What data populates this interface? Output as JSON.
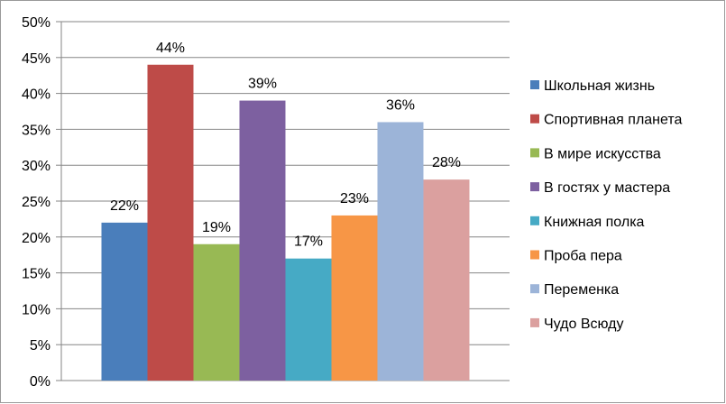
{
  "chart_data": {
    "type": "bar",
    "categories": [
      "Школьная жизнь",
      "Спортивная планета",
      "В мире искусства",
      "В гостях у мастера",
      "Книжная полка",
      "Проба пера",
      "Переменка",
      "Чудо Всюду"
    ],
    "values": [
      22,
      44,
      19,
      39,
      17,
      23,
      36,
      28
    ],
    "data_labels": [
      "22%",
      "44%",
      "19%",
      "39%",
      "17%",
      "23%",
      "36%",
      "28%"
    ],
    "colors": [
      "#4a7ebb",
      "#be4b48",
      "#98b954",
      "#7d60a0",
      "#46aac5",
      "#f79646",
      "#9cb4d8",
      "#dba09f"
    ],
    "ylim": [
      0,
      50
    ],
    "y_ticks": [
      0,
      5,
      10,
      15,
      20,
      25,
      30,
      35,
      40,
      45,
      50
    ],
    "y_tick_labels": [
      "0%",
      "5%",
      "10%",
      "15%",
      "20%",
      "25%",
      "30%",
      "35%",
      "40%",
      "45%",
      "50%"
    ],
    "grid": true,
    "legend_position": "right"
  }
}
